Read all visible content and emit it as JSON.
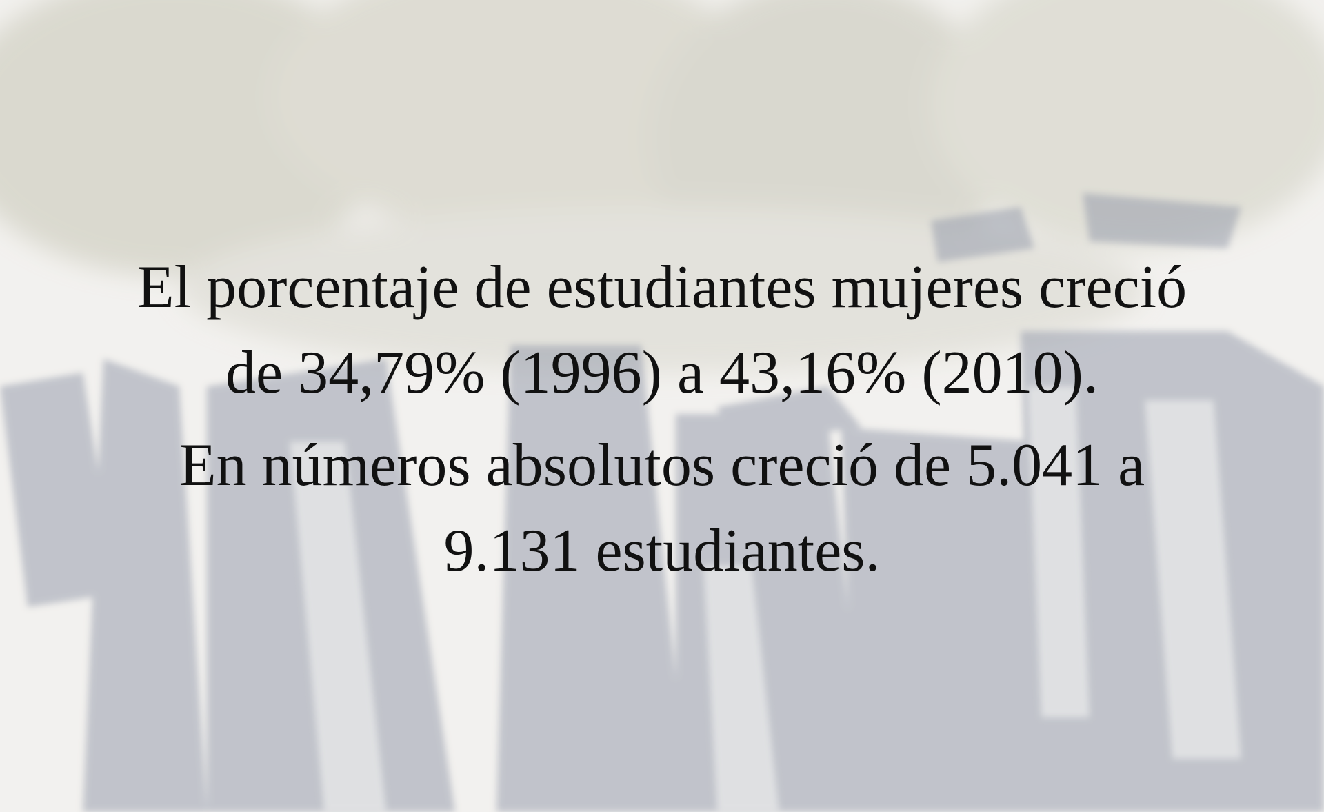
{
  "paragraphs": [
    [
      "El porcentaje de estudiantes mujeres creció",
      "de 34,79% (1996) a 43,16% (2010)."
    ],
    [
      "En números absolutos creció de 5.041 a",
      "9.131 estudiantes."
    ]
  ]
}
